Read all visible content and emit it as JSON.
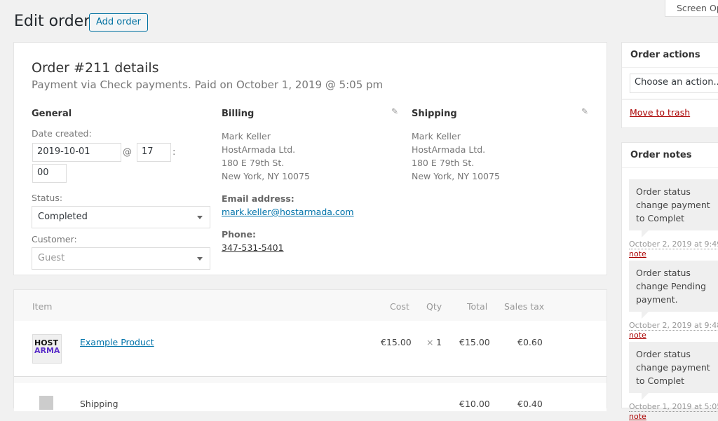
{
  "header": {
    "title": "Edit order",
    "add_order": "Add order",
    "screen_options": "Screen Op"
  },
  "order": {
    "title": "Order #211 details",
    "subtitle": "Payment via Check payments. Paid on October 1, 2019 @ 5:05 pm",
    "general": {
      "heading": "General",
      "date_label": "Date created:",
      "date": "2019-10-01",
      "at": "@",
      "hour": "17",
      "colon": ":",
      "minute": "00",
      "status_label": "Status:",
      "status": "Completed",
      "customer_label": "Customer:",
      "customer": "Guest"
    },
    "billing": {
      "heading": "Billing",
      "lines": [
        "Mark Keller",
        "HostArmada Ltd.",
        "180 E 79th St.",
        "New York, NY 10075"
      ],
      "email_label": "Email address:",
      "email": "mark.keller@hostarmada.com",
      "phone_label": "Phone:",
      "phone": "347-531-5401"
    },
    "shipping": {
      "heading": "Shipping",
      "lines": [
        "Mark Keller",
        "HostArmada Ltd.",
        "180 E 79th St.",
        "New York, NY 10075"
      ]
    }
  },
  "items": {
    "headers": [
      "Item",
      "Cost",
      "Qty",
      "Total",
      "Sales tax"
    ],
    "rows": [
      {
        "name": "Example Product",
        "cost": "€15.00",
        "qty_x": "×",
        "qty": "1",
        "total": "€15.00",
        "tax": "€0.60",
        "thumb": "HOST ARMA"
      },
      {
        "name": "Shipping",
        "total": "€10.00",
        "tax": "€0.40"
      }
    ]
  },
  "actions": {
    "heading": "Order actions",
    "select": "Choose an action...",
    "trash": "Move to trash"
  },
  "notes": {
    "heading": "Order notes",
    "items": [
      {
        "text": "Order status change payment to Complet",
        "meta": "October 2, 2019 at 9:49",
        "delete": "note"
      },
      {
        "text": "Order status change Pending payment.",
        "meta": "October 2, 2019 at 9:48",
        "delete": "note"
      },
      {
        "text": "Order status change payment to Complet",
        "meta": "October 1, 2019 at 5:05",
        "delete": "note"
      }
    ]
  }
}
